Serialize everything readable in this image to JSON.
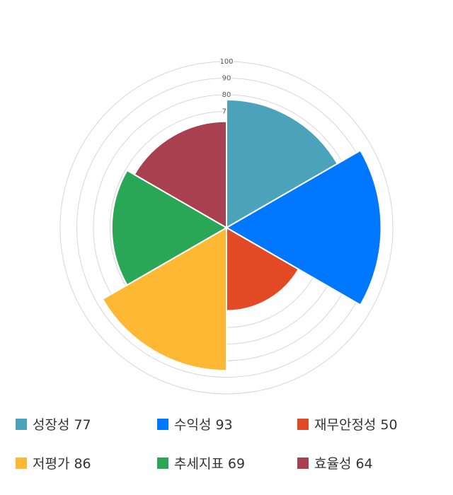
{
  "chart_data": {
    "type": "polarArea",
    "categories": [
      "성장성",
      "수익성",
      "재무안정성",
      "저평가",
      "추세지표",
      "효율성"
    ],
    "values": [
      77,
      93,
      50,
      86,
      69,
      64
    ],
    "colors": [
      "#4aa3bb",
      "#0077ff",
      "#e24a25",
      "#ffb833",
      "#2aa756",
      "#a8404f"
    ],
    "rlim": [
      0,
      100
    ],
    "rticks": [
      0,
      10,
      20,
      30,
      40,
      50,
      60,
      70,
      80,
      90,
      100
    ],
    "grid": true,
    "legend": "bottom"
  }
}
